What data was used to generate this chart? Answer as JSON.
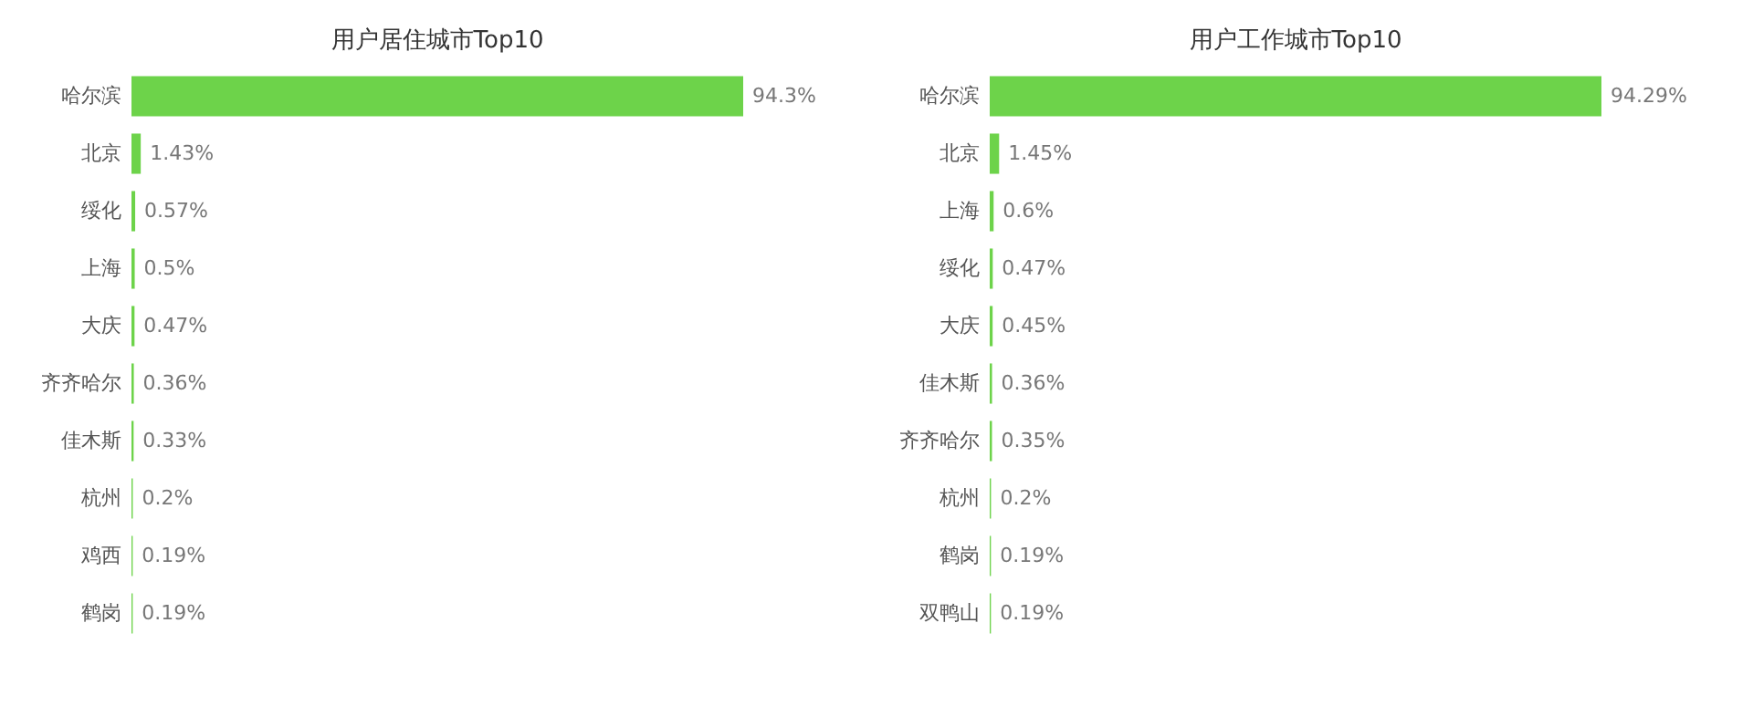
{
  "chart_data": [
    {
      "type": "bar",
      "orientation": "horizontal",
      "title": "用户居住城市Top10",
      "tick_labels": "y",
      "categories": [
        "哈尔滨",
        "北京",
        "绥化",
        "上海",
        "大庆",
        "齐齐哈尔",
        "佳木斯",
        "杭州",
        "鸡西",
        "鹤岗"
      ],
      "values": [
        94.3,
        1.43,
        0.57,
        0.5,
        0.47,
        0.36,
        0.33,
        0.2,
        0.19,
        0.19
      ],
      "value_labels": [
        "94.3%",
        "1.43%",
        "0.57%",
        "0.5%",
        "0.47%",
        "0.36%",
        "0.33%",
        "0.2%",
        "0.19%",
        "0.19%"
      ],
      "color": "#6dd34a"
    },
    {
      "type": "bar",
      "orientation": "horizontal",
      "title": "用户工作城市Top10",
      "tick_labels": "y",
      "categories": [
        "哈尔滨",
        "北京",
        "上海",
        "绥化",
        "大庆",
        "佳木斯",
        "齐齐哈尔",
        "杭州",
        "鹤岗",
        "双鸭山"
      ],
      "values": [
        94.29,
        1.45,
        0.6,
        0.47,
        0.45,
        0.36,
        0.35,
        0.2,
        0.19,
        0.19
      ],
      "value_labels": [
        "94.29%",
        "1.45%",
        "0.6%",
        "0.47%",
        "0.45%",
        "0.36%",
        "0.35%",
        "0.2%",
        "0.19%",
        "0.19%"
      ],
      "color": "#6dd34a"
    }
  ]
}
